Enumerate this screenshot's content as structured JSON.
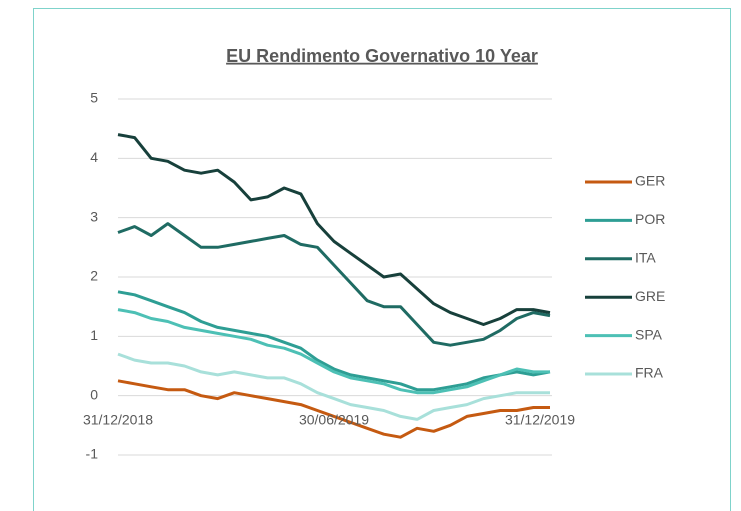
{
  "chart_data": {
    "type": "line",
    "title": "EU Rendimento Governativo 10 Year",
    "categories": [
      "31/12/2018",
      null,
      null,
      null,
      null,
      null,
      null,
      null,
      null,
      null,
      null,
      null,
      null,
      "30/06/2019",
      null,
      null,
      null,
      null,
      null,
      null,
      null,
      null,
      null,
      null,
      null,
      null,
      "31/12/2019"
    ],
    "ylim": [
      -1,
      5
    ],
    "yticks": [
      -1,
      0,
      1,
      2,
      3,
      4,
      5
    ],
    "grid": true,
    "legend": "right",
    "series": [
      {
        "name": "GER",
        "color": "#c55a11",
        "values": [
          0.25,
          0.2,
          0.15,
          0.1,
          0.1,
          0.0,
          -0.05,
          0.05,
          0.0,
          -0.05,
          -0.1,
          -0.15,
          -0.25,
          -0.35,
          -0.45,
          -0.55,
          -0.65,
          -0.7,
          -0.55,
          -0.6,
          -0.5,
          -0.35,
          -0.3,
          -0.25,
          -0.25,
          -0.2,
          -0.2
        ]
      },
      {
        "name": "POR",
        "color": "#2e9e94",
        "values": [
          1.75,
          1.7,
          1.6,
          1.5,
          1.4,
          1.25,
          1.15,
          1.1,
          1.05,
          1.0,
          0.9,
          0.8,
          0.6,
          0.45,
          0.35,
          0.3,
          0.25,
          0.2,
          0.1,
          0.1,
          0.15,
          0.2,
          0.3,
          0.35,
          0.4,
          0.35,
          0.4
        ]
      },
      {
        "name": "ITA",
        "color": "#1f6b63",
        "values": [
          2.75,
          2.85,
          2.7,
          2.9,
          2.7,
          2.5,
          2.5,
          2.55,
          2.6,
          2.65,
          2.7,
          2.55,
          2.5,
          2.2,
          1.9,
          1.6,
          1.5,
          1.5,
          1.2,
          0.9,
          0.85,
          0.9,
          0.95,
          1.1,
          1.3,
          1.4,
          1.35
        ]
      },
      {
        "name": "GRE",
        "color": "#17403b",
        "values": [
          4.4,
          4.35,
          4.0,
          3.95,
          3.8,
          3.75,
          3.8,
          3.6,
          3.3,
          3.35,
          3.5,
          3.4,
          2.9,
          2.6,
          2.4,
          2.2,
          2.0,
          2.05,
          1.8,
          1.55,
          1.4,
          1.3,
          1.2,
          1.3,
          1.45,
          1.45,
          1.4
        ]
      },
      {
        "name": "SPA",
        "color": "#4dc0b5",
        "values": [
          1.45,
          1.4,
          1.3,
          1.25,
          1.15,
          1.1,
          1.05,
          1.0,
          0.95,
          0.85,
          0.8,
          0.7,
          0.55,
          0.4,
          0.3,
          0.25,
          0.2,
          0.1,
          0.05,
          0.05,
          0.1,
          0.15,
          0.25,
          0.35,
          0.45,
          0.4,
          0.4
        ]
      },
      {
        "name": "FRA",
        "color": "#a8e0da",
        "values": [
          0.7,
          0.6,
          0.55,
          0.55,
          0.5,
          0.4,
          0.35,
          0.4,
          0.35,
          0.3,
          0.3,
          0.2,
          0.05,
          -0.05,
          -0.15,
          -0.2,
          -0.25,
          -0.35,
          -0.4,
          -0.25,
          -0.2,
          -0.15,
          -0.05,
          0.0,
          0.05,
          0.05,
          0.05
        ]
      }
    ]
  }
}
